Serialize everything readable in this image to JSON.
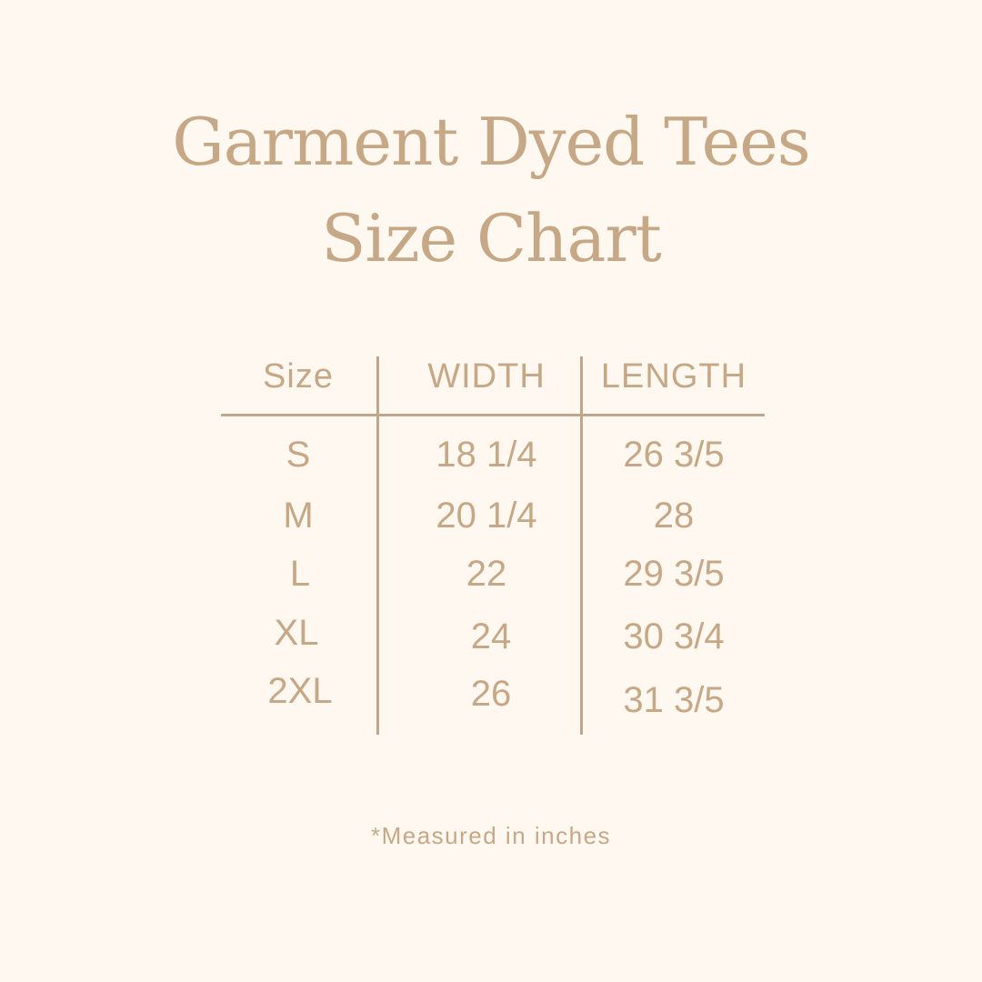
{
  "title": {
    "line1": "Garment Dyed Tees",
    "line2": "Size Chart"
  },
  "table": {
    "headers": [
      "Size",
      "WIDTH",
      "LENGTH"
    ],
    "rows": [
      [
        "S",
        "18 1/4",
        "26 3/5"
      ],
      [
        "M",
        "20 1/4",
        "28"
      ],
      [
        "L",
        "22",
        "29 3/5"
      ],
      [
        "XL",
        "24",
        "30 3/4"
      ],
      [
        "2XL",
        "26",
        "31 3/5"
      ]
    ]
  },
  "footnote": "*Measured in inches",
  "colors": {
    "background": "#fef8f0",
    "text": "#c7a886",
    "rules": "#bfa78e"
  }
}
